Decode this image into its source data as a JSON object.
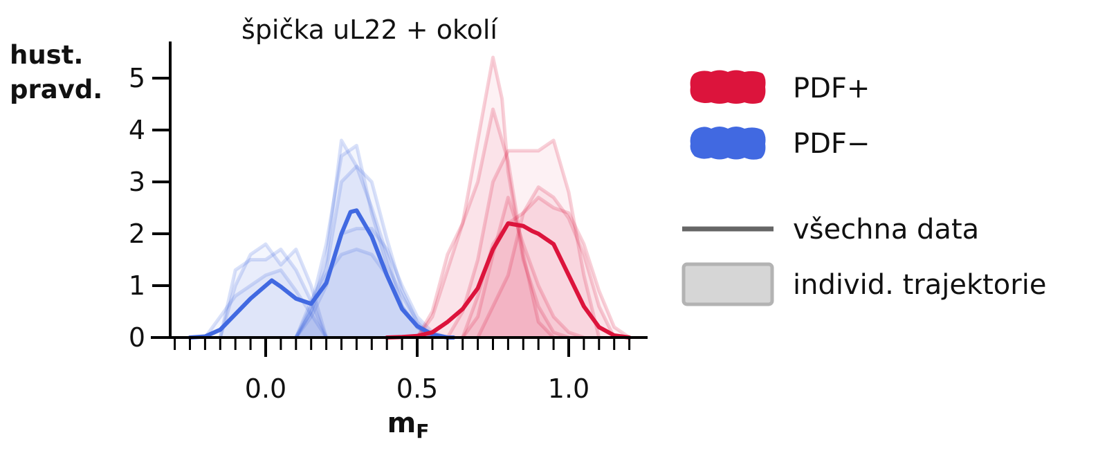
{
  "chart_data": {
    "type": "line",
    "title": "špička uL22 + okolí",
    "ylabel_lines": [
      "hust.",
      "pravd."
    ],
    "xlabel": {
      "main": "m",
      "sub": "F"
    },
    "xlim": [
      -0.31,
      1.26
    ],
    "ylim": [
      0,
      5.7
    ],
    "x_ticks": [
      0.0,
      0.5,
      1.0
    ],
    "x_tick_labels": [
      "0.0",
      "0.5",
      "1.0"
    ],
    "x_minor_ticks": [
      -0.3,
      -0.25,
      -0.2,
      -0.15,
      -0.1,
      -0.05,
      0.05,
      0.1,
      0.15,
      0.2,
      0.25,
      0.3,
      0.35,
      0.4,
      0.45,
      0.55,
      0.6,
      0.65,
      0.7,
      0.75,
      0.8,
      0.85,
      0.9,
      0.95,
      1.05,
      1.1,
      1.15,
      1.2
    ],
    "y_ticks": [
      0,
      1,
      2,
      3,
      4,
      5
    ],
    "y_tick_labels": [
      "0",
      "1",
      "2",
      "3",
      "4",
      "5"
    ],
    "colors": {
      "plus": "#dc143c",
      "minus": "#4169e1",
      "axis": "#000000"
    },
    "series": [
      {
        "name": "PDF−",
        "role": "all-data",
        "color": "#4169e1",
        "x": [
          -0.25,
          -0.2,
          -0.15,
          -0.1,
          -0.05,
          0.0,
          0.02,
          0.05,
          0.1,
          0.15,
          0.2,
          0.25,
          0.28,
          0.3,
          0.35,
          0.4,
          0.45,
          0.5,
          0.55,
          0.6,
          0.62
        ],
        "y": [
          0.0,
          0.02,
          0.15,
          0.45,
          0.75,
          1.0,
          1.1,
          0.98,
          0.75,
          0.65,
          1.05,
          2.0,
          2.42,
          2.45,
          1.95,
          1.2,
          0.55,
          0.22,
          0.06,
          0.0,
          0.0
        ]
      },
      {
        "name": "PDF+",
        "role": "all-data",
        "color": "#dc143c",
        "x": [
          0.4,
          0.45,
          0.5,
          0.55,
          0.6,
          0.65,
          0.7,
          0.75,
          0.8,
          0.85,
          0.88,
          0.9,
          0.95,
          1.0,
          1.05,
          1.1,
          1.15,
          1.2
        ],
        "y": [
          0.0,
          0.01,
          0.03,
          0.1,
          0.3,
          0.55,
          0.95,
          1.7,
          2.2,
          2.15,
          2.05,
          2.0,
          1.8,
          1.2,
          0.6,
          0.2,
          0.04,
          0.0
        ]
      }
    ],
    "trajectories": [
      {
        "group": "PDF−",
        "x": [
          -0.15,
          -0.1,
          -0.05,
          0.0,
          0.05,
          0.1,
          0.15,
          0.2
        ],
        "y": [
          0.0,
          1.0,
          1.6,
          1.8,
          1.4,
          1.7,
          1.0,
          0.0
        ]
      },
      {
        "group": "PDF−",
        "x": [
          -0.15,
          -0.1,
          -0.05,
          0.0,
          0.05,
          0.1,
          0.15,
          0.2
        ],
        "y": [
          0.0,
          1.3,
          1.5,
          1.5,
          1.7,
          1.3,
          0.7,
          0.0
        ]
      },
      {
        "group": "PDF−",
        "x": [
          -0.2,
          -0.1,
          0.0,
          0.05,
          0.1,
          0.2
        ],
        "y": [
          0.0,
          0.8,
          1.2,
          1.3,
          0.9,
          0.0
        ]
      },
      {
        "group": "PDF−",
        "x": [
          0.1,
          0.15,
          0.2,
          0.25,
          0.3,
          0.35,
          0.4,
          0.45,
          0.5,
          0.55
        ],
        "y": [
          0.0,
          0.5,
          1.5,
          3.8,
          3.3,
          2.5,
          1.6,
          0.6,
          0.2,
          0.0
        ]
      },
      {
        "group": "PDF−",
        "x": [
          0.1,
          0.15,
          0.2,
          0.25,
          0.3,
          0.35,
          0.4,
          0.45,
          0.5,
          0.55
        ],
        "y": [
          0.0,
          0.6,
          1.8,
          3.5,
          3.7,
          2.4,
          1.4,
          0.8,
          0.3,
          0.0
        ]
      },
      {
        "group": "PDF−",
        "x": [
          0.1,
          0.15,
          0.2,
          0.25,
          0.3,
          0.35,
          0.4,
          0.45,
          0.5,
          0.55
        ],
        "y": [
          0.0,
          0.7,
          1.3,
          3.0,
          3.3,
          3.0,
          1.9,
          0.9,
          0.3,
          0.0
        ]
      },
      {
        "group": "PDF−",
        "x": [
          0.1,
          0.15,
          0.2,
          0.25,
          0.3,
          0.35,
          0.4,
          0.45,
          0.5,
          0.55,
          0.6
        ],
        "y": [
          0.0,
          0.4,
          1.0,
          2.0,
          2.1,
          2.1,
          1.7,
          1.0,
          0.4,
          0.1,
          0.0
        ]
      },
      {
        "group": "PDF−",
        "x": [
          0.1,
          0.15,
          0.2,
          0.25,
          0.3,
          0.35,
          0.4,
          0.45,
          0.5,
          0.55
        ],
        "y": [
          0.0,
          0.5,
          1.2,
          1.6,
          1.7,
          1.6,
          1.2,
          0.6,
          0.2,
          0.0
        ]
      },
      {
        "group": "PDF+",
        "x": [
          0.5,
          0.55,
          0.6,
          0.65,
          0.7,
          0.75,
          0.78,
          0.8,
          0.85,
          0.9,
          0.95,
          1.0
        ],
        "y": [
          0.0,
          0.4,
          1.3,
          2.2,
          3.8,
          5.4,
          4.6,
          3.2,
          1.5,
          0.6,
          0.1,
          0.0
        ]
      },
      {
        "group": "PDF+",
        "x": [
          0.5,
          0.55,
          0.6,
          0.65,
          0.7,
          0.75,
          0.8,
          0.85,
          0.9,
          0.95
        ],
        "y": [
          0.0,
          0.5,
          1.6,
          2.2,
          3.0,
          4.4,
          3.4,
          1.6,
          0.3,
          0.0
        ]
      },
      {
        "group": "PDF+",
        "x": [
          0.6,
          0.65,
          0.7,
          0.75,
          0.8,
          0.85,
          0.9,
          0.95,
          1.0,
          1.05,
          1.1
        ],
        "y": [
          0.0,
          0.5,
          1.5,
          3.0,
          3.6,
          3.6,
          3.6,
          3.8,
          2.8,
          1.2,
          0.0
        ]
      },
      {
        "group": "PDF+",
        "x": [
          0.65,
          0.7,
          0.75,
          0.8,
          0.85,
          0.9,
          0.95,
          1.0,
          1.05,
          1.1,
          1.15
        ],
        "y": [
          0.0,
          0.8,
          1.8,
          2.2,
          2.4,
          2.9,
          2.7,
          2.3,
          1.6,
          0.6,
          0.0
        ]
      },
      {
        "group": "PDF+",
        "x": [
          0.7,
          0.75,
          0.8,
          0.85,
          0.9,
          0.95,
          1.0,
          1.05,
          1.1,
          1.15,
          1.2
        ],
        "y": [
          0.0,
          0.6,
          1.2,
          2.4,
          2.7,
          2.5,
          2.4,
          1.8,
          0.9,
          0.2,
          0.0
        ]
      },
      {
        "group": "PDF+",
        "x": [
          0.65,
          0.7,
          0.75,
          0.8,
          0.85,
          0.9,
          0.95,
          1.0,
          1.05
        ],
        "y": [
          0.0,
          0.4,
          1.6,
          2.7,
          1.8,
          1.0,
          0.4,
          0.1,
          0.0
        ]
      }
    ],
    "legend": {
      "position": "right",
      "items": [
        {
          "label": "PDF+",
          "kind": "patch",
          "color": "#dc143c"
        },
        {
          "label": "PDF−",
          "kind": "patch",
          "color": "#4169e1"
        },
        {
          "label": "všechna data",
          "kind": "line",
          "color": "#666666"
        },
        {
          "label": "individ. trajektorie",
          "kind": "area",
          "color": "#d6d6d6"
        }
      ]
    }
  }
}
